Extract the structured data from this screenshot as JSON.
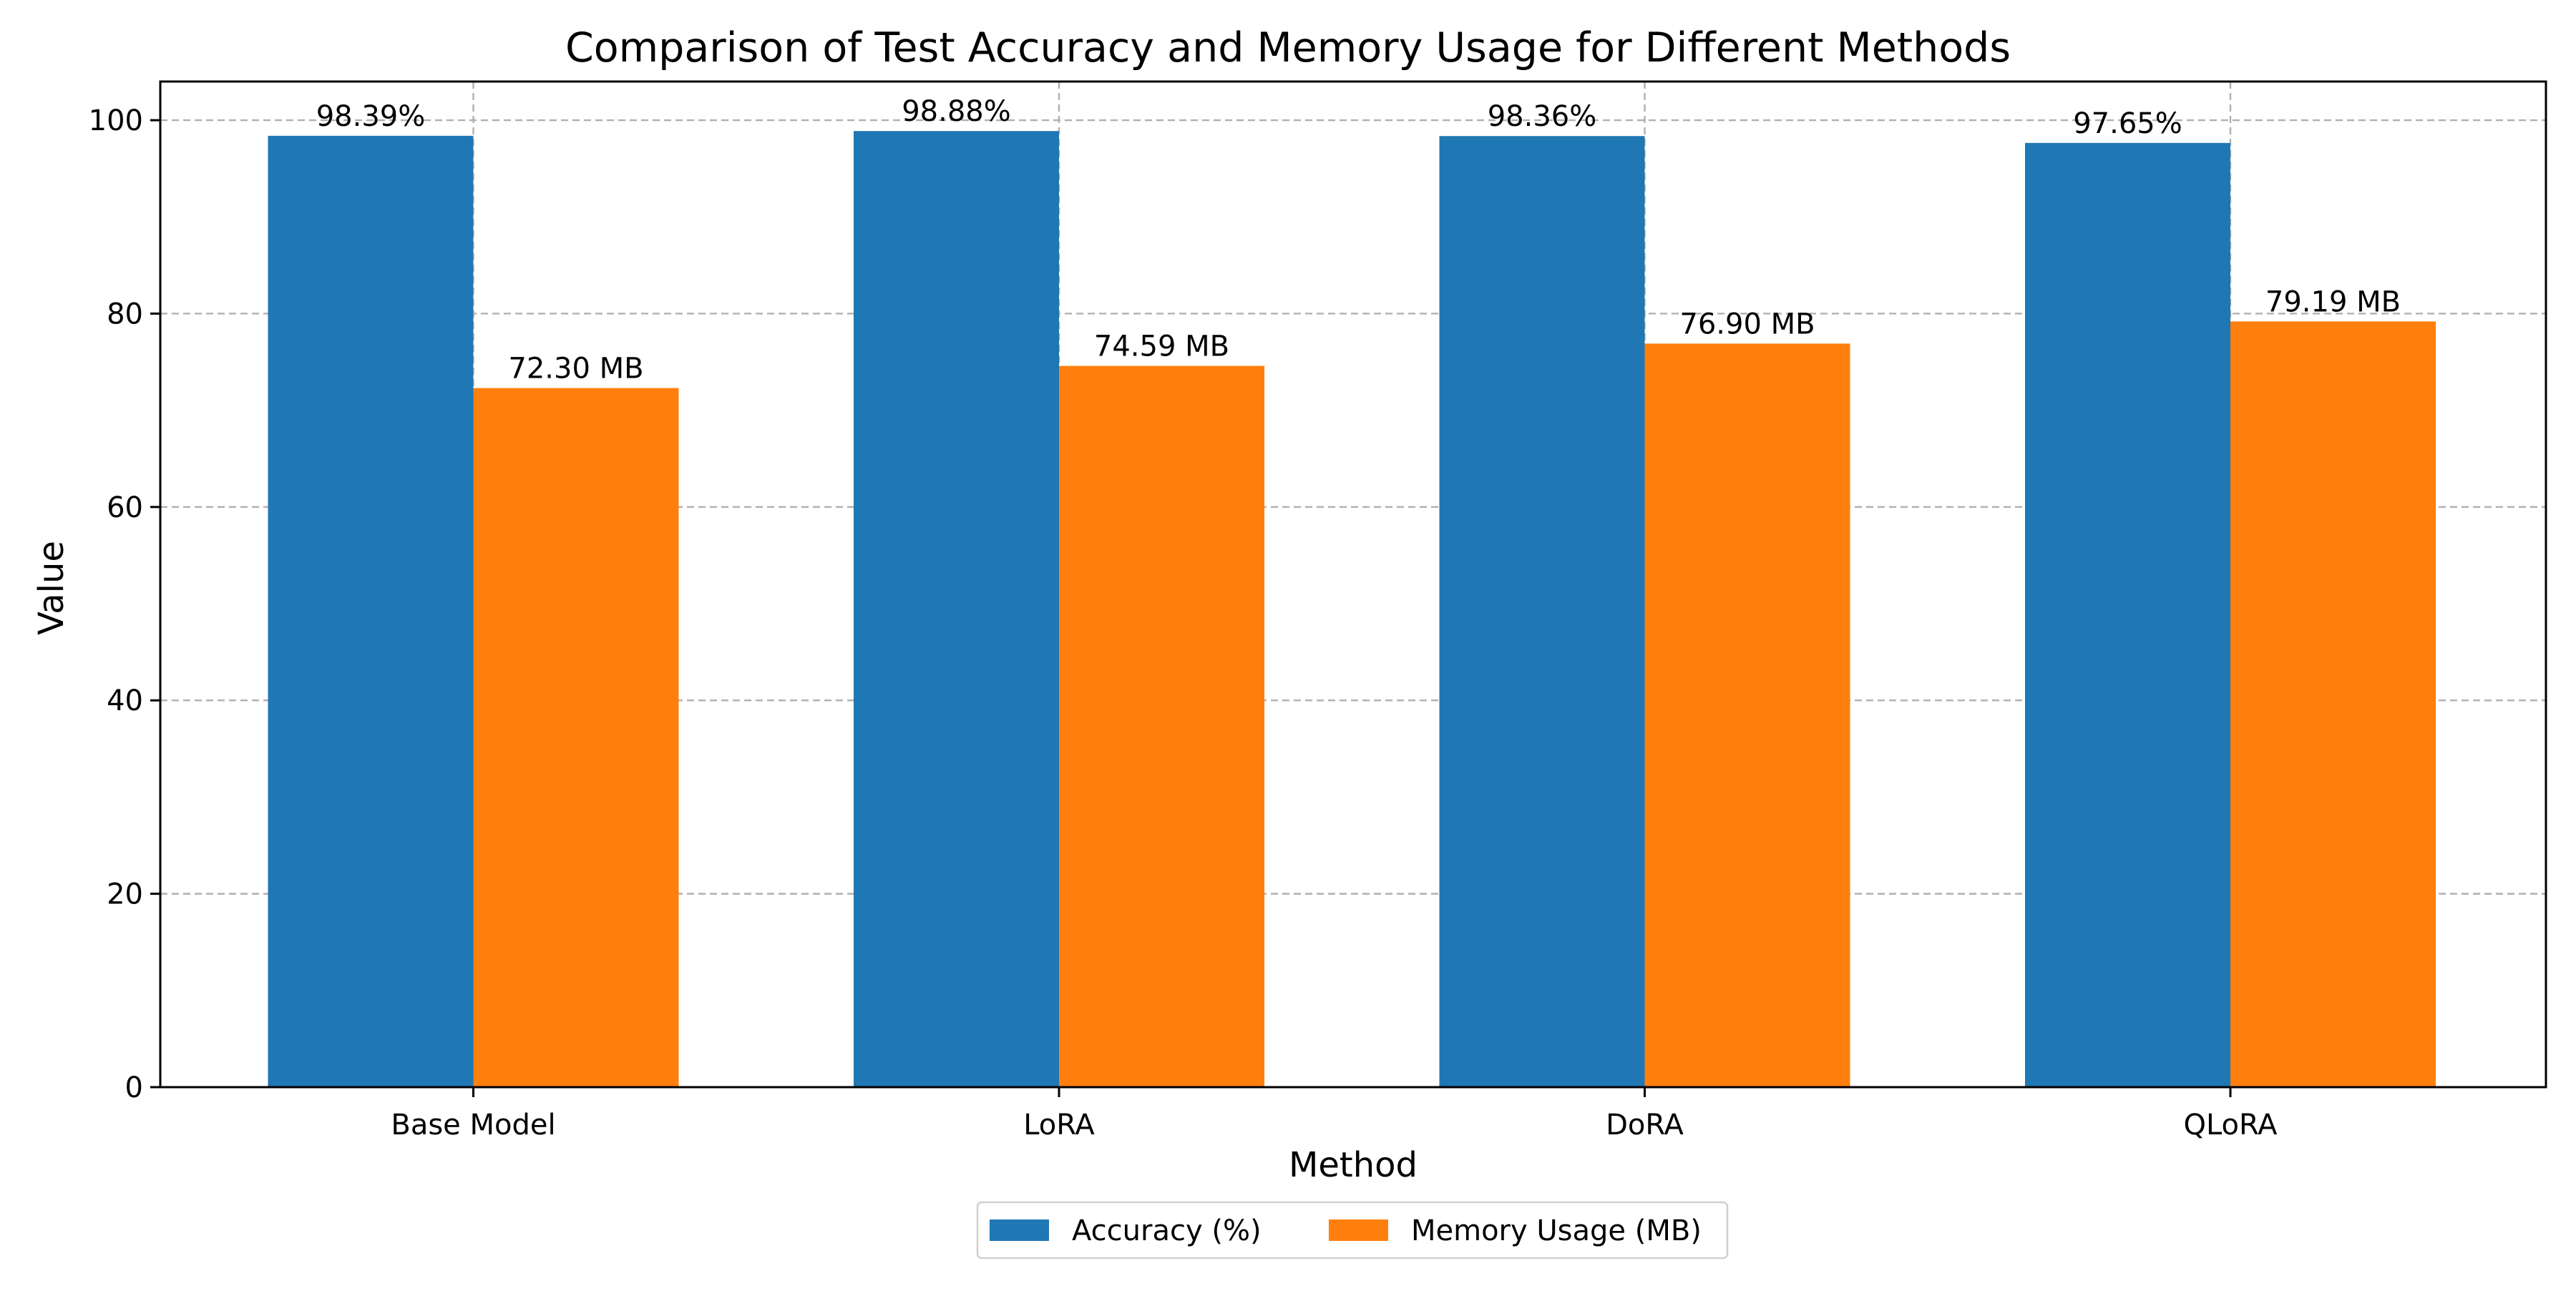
{
  "chart_data": {
    "type": "bar",
    "title": "Comparison of Test Accuracy and Memory Usage for Different Methods",
    "xlabel": "Method",
    "ylabel": "Value",
    "categories": [
      "Base Model",
      "LoRA",
      "DoRA",
      "QLoRA"
    ],
    "ylim": [
      0,
      104
    ],
    "yticks": [
      0,
      20,
      40,
      60,
      80,
      100
    ],
    "grid": true,
    "legend_position": "bottom-center",
    "series": [
      {
        "name": "Accuracy (%)",
        "color": "#1f77b4",
        "values": [
          98.39,
          98.88,
          98.36,
          97.65
        ],
        "labels": [
          "98.39%",
          "98.88%",
          "98.36%",
          "97.65%"
        ]
      },
      {
        "name": "Memory Usage (MB)",
        "color": "#ff7f0e",
        "values": [
          72.3,
          74.59,
          76.9,
          79.19
        ],
        "labels": [
          "72.30 MB",
          "74.59 MB",
          "76.90 MB",
          "79.19 MB"
        ]
      }
    ]
  }
}
